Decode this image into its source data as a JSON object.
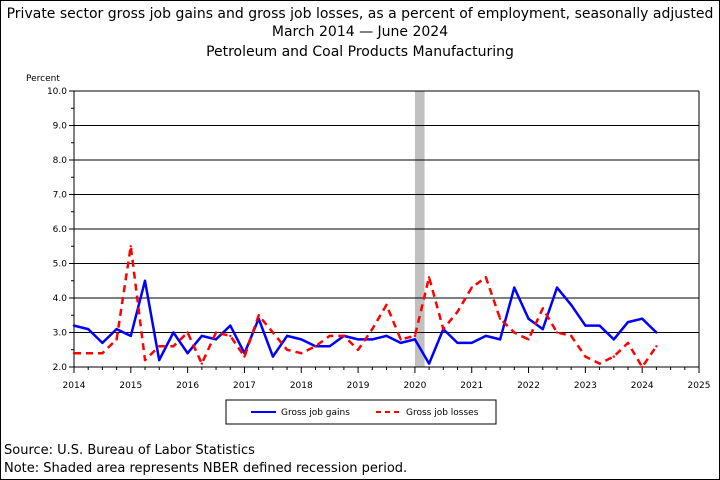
{
  "header": {
    "title_line1": "Private sector gross job gains and gross job losses, as a percent of employment, seasonally adjusted",
    "title_line2": "March 2014 — June 2024",
    "title_line3": "Petroleum and Coal Products Manufacturing"
  },
  "footer": {
    "source": "Source: U.S. Bureau of Labor Statistics",
    "note": "Note: Shaded area represents NBER defined recession period."
  },
  "chart_data": {
    "type": "line",
    "ylabel": "Percent",
    "ylim": [
      2.0,
      10.0
    ],
    "yticks": [
      "2.0",
      "3.0",
      "4.0",
      "5.0",
      "6.0",
      "7.0",
      "8.0",
      "9.0",
      "10.0"
    ],
    "xlim": [
      2014,
      2025
    ],
    "xticks": [
      "2014",
      "2015",
      "2016",
      "2017",
      "2018",
      "2019",
      "2020",
      "2021",
      "2022",
      "2023",
      "2024",
      "2025"
    ],
    "grid": true,
    "legend_position": "bottom",
    "recession": {
      "start": 2020.0,
      "end": 2020.17
    },
    "series": [
      {
        "name": "Gross job gains",
        "color": "#0000ff",
        "style": "solid",
        "x": [
          2014.0,
          2014.25,
          2014.5,
          2014.75,
          2015.0,
          2015.25,
          2015.5,
          2015.75,
          2016.0,
          2016.25,
          2016.5,
          2016.75,
          2017.0,
          2017.25,
          2017.5,
          2017.75,
          2018.0,
          2018.25,
          2018.5,
          2018.75,
          2019.0,
          2019.25,
          2019.5,
          2019.75,
          2020.0,
          2020.25,
          2020.5,
          2020.75,
          2021.0,
          2021.25,
          2021.5,
          2021.75,
          2022.0,
          2022.25,
          2022.5,
          2022.75,
          2023.0,
          2023.25,
          2023.5,
          2023.75,
          2024.0,
          2024.25
        ],
        "values": [
          3.2,
          3.1,
          2.7,
          3.1,
          2.9,
          4.5,
          2.2,
          3.0,
          2.4,
          2.9,
          2.8,
          3.2,
          2.4,
          3.4,
          2.3,
          2.9,
          2.8,
          2.6,
          2.6,
          2.9,
          2.8,
          2.8,
          2.9,
          2.7,
          2.8,
          2.1,
          3.1,
          2.7,
          2.7,
          2.9,
          2.8,
          4.3,
          3.4,
          3.1,
          4.3,
          3.8,
          3.2,
          3.2,
          2.8,
          3.3,
          3.4,
          3.0
        ]
      },
      {
        "name": "Gross job losses",
        "color": "#ff0000",
        "style": "dashed",
        "x": [
          2014.0,
          2014.25,
          2014.5,
          2014.75,
          2015.0,
          2015.25,
          2015.5,
          2015.75,
          2016.0,
          2016.25,
          2016.5,
          2016.75,
          2017.0,
          2017.25,
          2017.5,
          2017.75,
          2018.0,
          2018.25,
          2018.5,
          2018.75,
          2019.0,
          2019.25,
          2019.5,
          2019.75,
          2020.0,
          2020.25,
          2020.5,
          2020.75,
          2021.0,
          2021.25,
          2021.5,
          2021.75,
          2022.0,
          2022.25,
          2022.5,
          2022.75,
          2023.0,
          2023.25,
          2023.5,
          2023.75,
          2024.0,
          2024.25
        ],
        "values": [
          2.4,
          2.4,
          2.4,
          2.8,
          5.5,
          2.2,
          2.6,
          2.6,
          3.0,
          2.1,
          3.0,
          2.9,
          2.3,
          3.5,
          3.0,
          2.5,
          2.4,
          2.6,
          2.9,
          2.9,
          2.5,
          3.1,
          3.8,
          2.8,
          2.9,
          4.6,
          3.1,
          3.6,
          4.3,
          4.6,
          3.4,
          3.0,
          2.8,
          3.7,
          3.0,
          2.9,
          2.3,
          2.1,
          2.3,
          2.7,
          2.0,
          2.6
        ]
      }
    ]
  }
}
